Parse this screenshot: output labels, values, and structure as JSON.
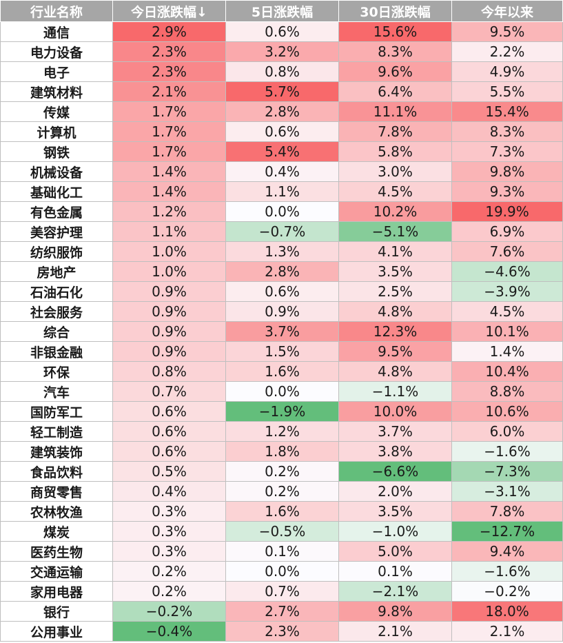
{
  "chart_data": {
    "type": "table",
    "columns": [
      "行业名称",
      "今日涨跌幅↓",
      "5日涨跌幅",
      "30日涨跌幅",
      "今年以来"
    ],
    "colors": {
      "positive": "#f8696b",
      "negative": "#63be7b",
      "neutral": "#fcfcff",
      "header_bg": "#a6a6a6"
    },
    "rows": [
      {
        "name": "通信",
        "values": [
          "2.9%",
          "0.6%",
          "15.6%",
          "9.5%"
        ]
      },
      {
        "name": "电力设备",
        "values": [
          "2.3%",
          "3.2%",
          "8.3%",
          "2.2%"
        ]
      },
      {
        "name": "电子",
        "values": [
          "2.3%",
          "0.8%",
          "9.6%",
          "4.9%"
        ]
      },
      {
        "name": "建筑材料",
        "values": [
          "2.1%",
          "5.7%",
          "6.4%",
          "5.5%"
        ]
      },
      {
        "name": "传媒",
        "values": [
          "1.7%",
          "2.8%",
          "11.1%",
          "15.4%"
        ]
      },
      {
        "name": "计算机",
        "values": [
          "1.7%",
          "0.6%",
          "7.8%",
          "8.3%"
        ]
      },
      {
        "name": "钢铁",
        "values": [
          "1.7%",
          "5.4%",
          "5.8%",
          "7.3%"
        ]
      },
      {
        "name": "机械设备",
        "values": [
          "1.4%",
          "0.4%",
          "3.0%",
          "9.8%"
        ]
      },
      {
        "name": "基础化工",
        "values": [
          "1.4%",
          "1.1%",
          "4.5%",
          "9.3%"
        ]
      },
      {
        "name": "有色金属",
        "values": [
          "1.2%",
          "0.0%",
          "10.2%",
          "19.9%"
        ]
      },
      {
        "name": "美容护理",
        "values": [
          "1.1%",
          "−0.7%",
          "−5.1%",
          "6.9%"
        ]
      },
      {
        "name": "纺织服饰",
        "values": [
          "1.0%",
          "1.3%",
          "4.1%",
          "7.6%"
        ]
      },
      {
        "name": "房地产",
        "values": [
          "1.0%",
          "2.8%",
          "3.5%",
          "−4.6%"
        ]
      },
      {
        "name": "石油石化",
        "values": [
          "0.9%",
          "0.6%",
          "2.5%",
          "−3.9%"
        ]
      },
      {
        "name": "社会服务",
        "values": [
          "0.9%",
          "0.9%",
          "4.8%",
          "4.5%"
        ]
      },
      {
        "name": "综合",
        "values": [
          "0.9%",
          "3.7%",
          "12.3%",
          "10.1%"
        ]
      },
      {
        "name": "非银金融",
        "values": [
          "0.9%",
          "1.5%",
          "9.5%",
          "1.4%"
        ]
      },
      {
        "name": "环保",
        "values": [
          "0.8%",
          "1.6%",
          "4.8%",
          "10.4%"
        ]
      },
      {
        "name": "汽车",
        "values": [
          "0.7%",
          "0.0%",
          "−1.1%",
          "8.8%"
        ]
      },
      {
        "name": "国防军工",
        "values": [
          "0.6%",
          "−1.9%",
          "10.0%",
          "10.6%"
        ]
      },
      {
        "name": "轻工制造",
        "values": [
          "0.6%",
          "1.2%",
          "3.7%",
          "6.0%"
        ]
      },
      {
        "name": "建筑装饰",
        "values": [
          "0.6%",
          "1.8%",
          "3.8%",
          "−1.6%"
        ]
      },
      {
        "name": "食品饮料",
        "values": [
          "0.5%",
          "0.2%",
          "−6.6%",
          "−7.3%"
        ]
      },
      {
        "name": "商贸零售",
        "values": [
          "0.4%",
          "0.2%",
          "2.0%",
          "−3.1%"
        ]
      },
      {
        "name": "农林牧渔",
        "values": [
          "0.3%",
          "1.6%",
          "3.5%",
          "7.8%"
        ]
      },
      {
        "name": "煤炭",
        "values": [
          "0.3%",
          "−0.5%",
          "−1.0%",
          "−12.7%"
        ]
      },
      {
        "name": "医药生物",
        "values": [
          "0.3%",
          "0.1%",
          "5.0%",
          "9.4%"
        ]
      },
      {
        "name": "交通运输",
        "values": [
          "0.2%",
          "0.0%",
          "0.1%",
          "−1.6%"
        ]
      },
      {
        "name": "家用电器",
        "values": [
          "0.2%",
          "0.7%",
          "−2.1%",
          "−0.2%"
        ]
      },
      {
        "name": "银行",
        "values": [
          "−0.2%",
          "2.7%",
          "9.8%",
          "18.0%"
        ]
      },
      {
        "name": "公用事业",
        "values": [
          "−0.4%",
          "2.3%",
          "2.1%",
          "2.1%"
        ]
      }
    ]
  }
}
